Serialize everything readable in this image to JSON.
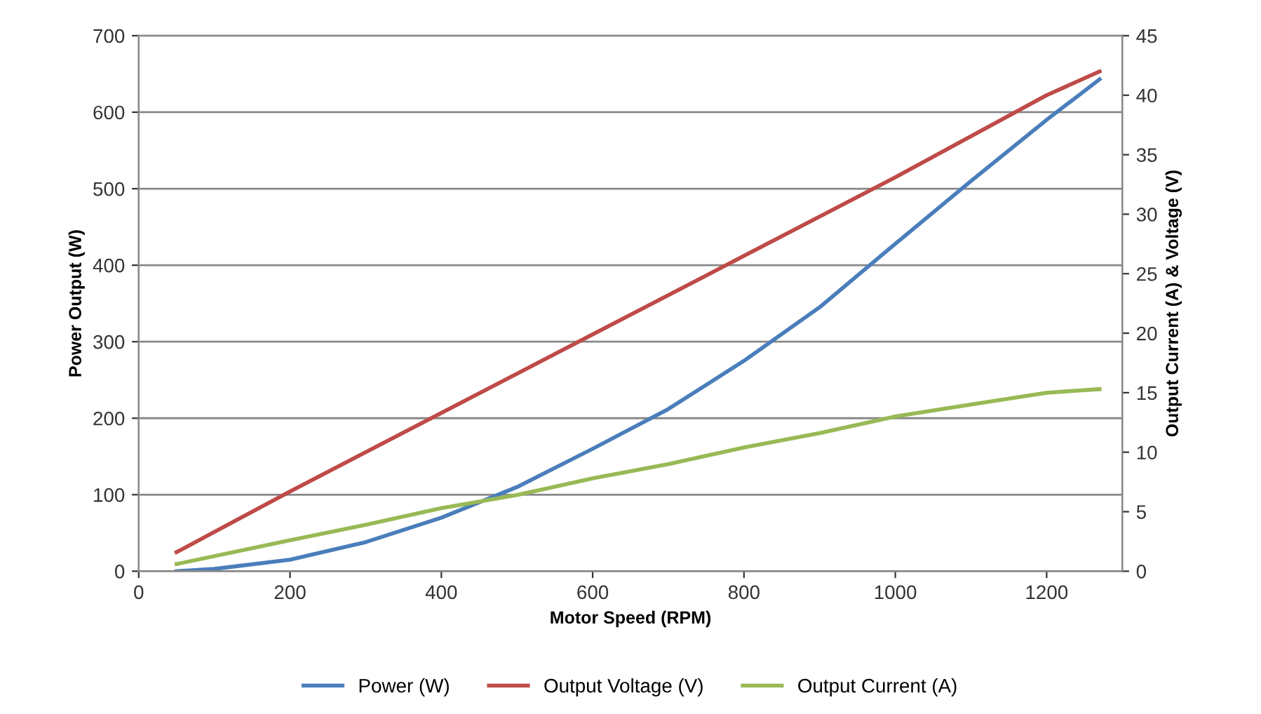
{
  "chart_data": {
    "type": "line",
    "xlabel": "Motor Speed (RPM)",
    "ylabel": "Power Output (W)",
    "y2label": "Output Current (A) & Voltage (V)",
    "xlim": [
      0,
      1300
    ],
    "xticks": [
      0,
      200,
      400,
      600,
      800,
      1000,
      1200
    ],
    "ylim": [
      0,
      700
    ],
    "yticks": [
      0,
      100,
      200,
      300,
      400,
      500,
      600,
      700
    ],
    "y2lim": [
      0,
      45
    ],
    "y2ticks": [
      0,
      5,
      10,
      15,
      20,
      25,
      30,
      35,
      40,
      45
    ],
    "grid": "y",
    "legend": "bottom",
    "marker": "none",
    "line_style": "solid",
    "series": [
      {
        "name": "Power (W)",
        "color": "#4a7ebb",
        "x": [
          50,
          100,
          200,
          300,
          400,
          500,
          600,
          700,
          800,
          900,
          1000,
          1100,
          1200,
          1270
        ],
        "values": [
          0,
          3,
          15,
          38,
          70,
          110,
          160,
          212,
          275,
          345,
          428,
          510,
          590,
          643
        ]
      },
      {
        "name": "Output Voltage (V)",
        "color": "#be4b48",
        "axis": "y2",
        "x": [
          50,
          200,
          400,
          600,
          800,
          1000,
          1200,
          1270
        ],
        "values": [
          1.6,
          6.7,
          13.3,
          19.9,
          26.5,
          33.1,
          40,
          42
        ]
      },
      {
        "name": "Output Current (A)",
        "color": "#98b954",
        "axis": "y2",
        "x": [
          50,
          200,
          300,
          400,
          500,
          600,
          700,
          800,
          900,
          1000,
          1100,
          1200,
          1270
        ],
        "values": [
          0.6,
          2.6,
          3.9,
          5.3,
          6.4,
          7.8,
          9.0,
          10.4,
          11.6,
          13.0,
          14.0,
          15.0,
          15.3
        ]
      }
    ]
  }
}
